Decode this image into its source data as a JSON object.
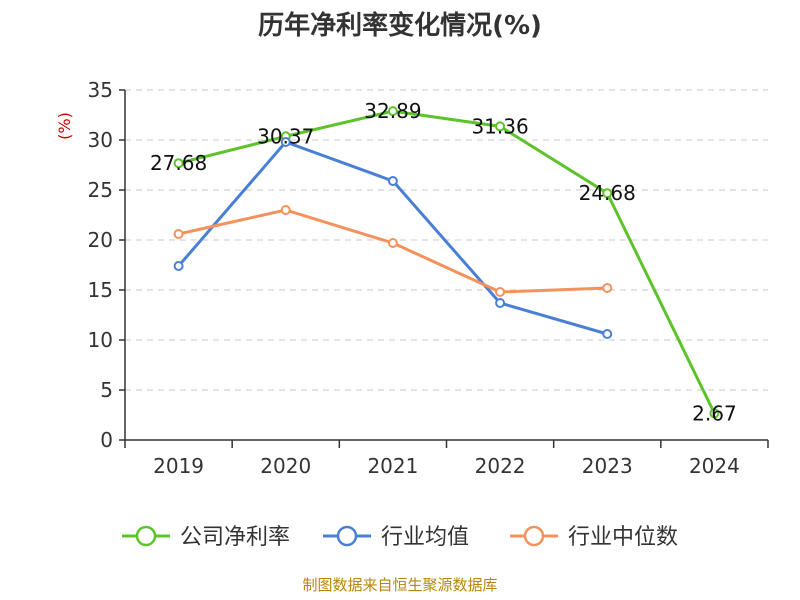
{
  "chart_data": {
    "type": "line",
    "title": "历年净利率变化情况(%)",
    "ylabel": "(%)",
    "xlabel": "",
    "ylim": [
      0,
      35
    ],
    "yticks": [
      0,
      5,
      10,
      15,
      20,
      25,
      30,
      35
    ],
    "grid": true,
    "legend_position": "bottom",
    "categories": [
      "2019",
      "2020",
      "2021",
      "2022",
      "2023",
      "2024"
    ],
    "series": [
      {
        "name": "公司净利率",
        "color": "#5dc32a",
        "values": [
          27.68,
          30.37,
          32.89,
          31.36,
          24.68,
          2.67
        ],
        "labels": [
          "27.68",
          "30.37",
          "32.89",
          "31.36",
          "24.68",
          "2.67"
        ]
      },
      {
        "name": "行业均值",
        "color": "#4a7fd6",
        "values": [
          17.4,
          29.8,
          25.9,
          13.7,
          10.6,
          null
        ]
      },
      {
        "name": "行业中位数",
        "color": "#f5915a",
        "values": [
          20.6,
          23.0,
          19.7,
          14.8,
          15.2,
          null
        ]
      }
    ]
  },
  "footer": {
    "source": "制图数据来自恒生聚源数据库"
  }
}
